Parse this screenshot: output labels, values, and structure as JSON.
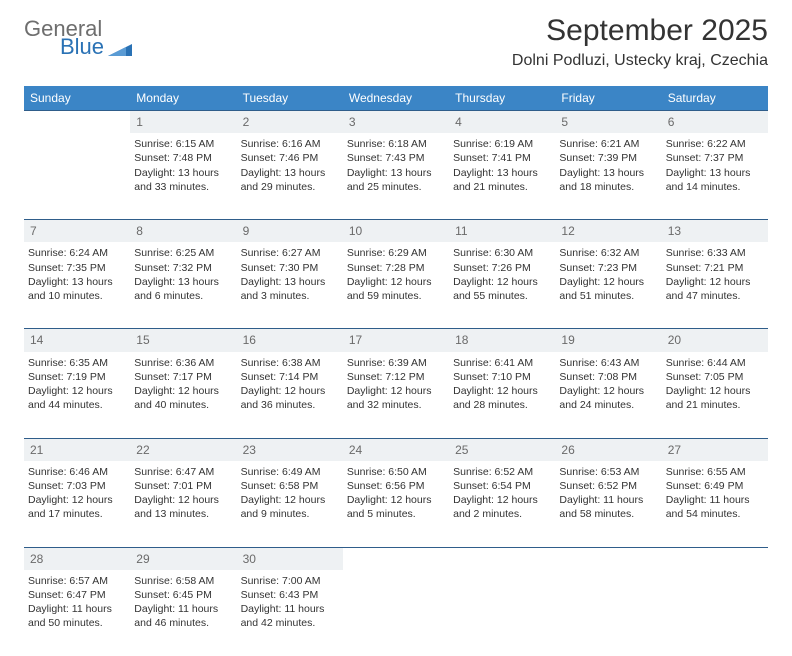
{
  "logo": {
    "line1": "General",
    "line2": "Blue",
    "shape_color": "#2a72b5",
    "text_gray": "#6e6e6e"
  },
  "title": {
    "month": "September 2025",
    "location": "Dolni Podluzi, Ustecky kraj, Czechia"
  },
  "colors": {
    "header_bg": "#3b85c6",
    "header_text": "#ffffff",
    "daynum_bg": "#eef1f3",
    "daynum_text": "#6a6a6a",
    "row_border": "#2f5d8a",
    "body_text": "#333333",
    "page_bg": "#ffffff"
  },
  "weekdays": [
    "Sunday",
    "Monday",
    "Tuesday",
    "Wednesday",
    "Thursday",
    "Friday",
    "Saturday"
  ],
  "weeks": [
    {
      "nums": [
        "",
        "1",
        "2",
        "3",
        "4",
        "5",
        "6"
      ],
      "cells": [
        [],
        [
          "Sunrise: 6:15 AM",
          "Sunset: 7:48 PM",
          "Daylight: 13 hours",
          "and 33 minutes."
        ],
        [
          "Sunrise: 6:16 AM",
          "Sunset: 7:46 PM",
          "Daylight: 13 hours",
          "and 29 minutes."
        ],
        [
          "Sunrise: 6:18 AM",
          "Sunset: 7:43 PM",
          "Daylight: 13 hours",
          "and 25 minutes."
        ],
        [
          "Sunrise: 6:19 AM",
          "Sunset: 7:41 PM",
          "Daylight: 13 hours",
          "and 21 minutes."
        ],
        [
          "Sunrise: 6:21 AM",
          "Sunset: 7:39 PM",
          "Daylight: 13 hours",
          "and 18 minutes."
        ],
        [
          "Sunrise: 6:22 AM",
          "Sunset: 7:37 PM",
          "Daylight: 13 hours",
          "and 14 minutes."
        ]
      ]
    },
    {
      "nums": [
        "7",
        "8",
        "9",
        "10",
        "11",
        "12",
        "13"
      ],
      "cells": [
        [
          "Sunrise: 6:24 AM",
          "Sunset: 7:35 PM",
          "Daylight: 13 hours",
          "and 10 minutes."
        ],
        [
          "Sunrise: 6:25 AM",
          "Sunset: 7:32 PM",
          "Daylight: 13 hours",
          "and 6 minutes."
        ],
        [
          "Sunrise: 6:27 AM",
          "Sunset: 7:30 PM",
          "Daylight: 13 hours",
          "and 3 minutes."
        ],
        [
          "Sunrise: 6:29 AM",
          "Sunset: 7:28 PM",
          "Daylight: 12 hours",
          "and 59 minutes."
        ],
        [
          "Sunrise: 6:30 AM",
          "Sunset: 7:26 PM",
          "Daylight: 12 hours",
          "and 55 minutes."
        ],
        [
          "Sunrise: 6:32 AM",
          "Sunset: 7:23 PM",
          "Daylight: 12 hours",
          "and 51 minutes."
        ],
        [
          "Sunrise: 6:33 AM",
          "Sunset: 7:21 PM",
          "Daylight: 12 hours",
          "and 47 minutes."
        ]
      ]
    },
    {
      "nums": [
        "14",
        "15",
        "16",
        "17",
        "18",
        "19",
        "20"
      ],
      "cells": [
        [
          "Sunrise: 6:35 AM",
          "Sunset: 7:19 PM",
          "Daylight: 12 hours",
          "and 44 minutes."
        ],
        [
          "Sunrise: 6:36 AM",
          "Sunset: 7:17 PM",
          "Daylight: 12 hours",
          "and 40 minutes."
        ],
        [
          "Sunrise: 6:38 AM",
          "Sunset: 7:14 PM",
          "Daylight: 12 hours",
          "and 36 minutes."
        ],
        [
          "Sunrise: 6:39 AM",
          "Sunset: 7:12 PM",
          "Daylight: 12 hours",
          "and 32 minutes."
        ],
        [
          "Sunrise: 6:41 AM",
          "Sunset: 7:10 PM",
          "Daylight: 12 hours",
          "and 28 minutes."
        ],
        [
          "Sunrise: 6:43 AM",
          "Sunset: 7:08 PM",
          "Daylight: 12 hours",
          "and 24 minutes."
        ],
        [
          "Sunrise: 6:44 AM",
          "Sunset: 7:05 PM",
          "Daylight: 12 hours",
          "and 21 minutes."
        ]
      ]
    },
    {
      "nums": [
        "21",
        "22",
        "23",
        "24",
        "25",
        "26",
        "27"
      ],
      "cells": [
        [
          "Sunrise: 6:46 AM",
          "Sunset: 7:03 PM",
          "Daylight: 12 hours",
          "and 17 minutes."
        ],
        [
          "Sunrise: 6:47 AM",
          "Sunset: 7:01 PM",
          "Daylight: 12 hours",
          "and 13 minutes."
        ],
        [
          "Sunrise: 6:49 AM",
          "Sunset: 6:58 PM",
          "Daylight: 12 hours",
          "and 9 minutes."
        ],
        [
          "Sunrise: 6:50 AM",
          "Sunset: 6:56 PM",
          "Daylight: 12 hours",
          "and 5 minutes."
        ],
        [
          "Sunrise: 6:52 AM",
          "Sunset: 6:54 PM",
          "Daylight: 12 hours",
          "and 2 minutes."
        ],
        [
          "Sunrise: 6:53 AM",
          "Sunset: 6:52 PM",
          "Daylight: 11 hours",
          "and 58 minutes."
        ],
        [
          "Sunrise: 6:55 AM",
          "Sunset: 6:49 PM",
          "Daylight: 11 hours",
          "and 54 minutes."
        ]
      ]
    },
    {
      "nums": [
        "28",
        "29",
        "30",
        "",
        "",
        "",
        ""
      ],
      "cells": [
        [
          "Sunrise: 6:57 AM",
          "Sunset: 6:47 PM",
          "Daylight: 11 hours",
          "and 50 minutes."
        ],
        [
          "Sunrise: 6:58 AM",
          "Sunset: 6:45 PM",
          "Daylight: 11 hours",
          "and 46 minutes."
        ],
        [
          "Sunrise: 7:00 AM",
          "Sunset: 6:43 PM",
          "Daylight: 11 hours",
          "and 42 minutes."
        ],
        [],
        [],
        [],
        []
      ]
    }
  ]
}
